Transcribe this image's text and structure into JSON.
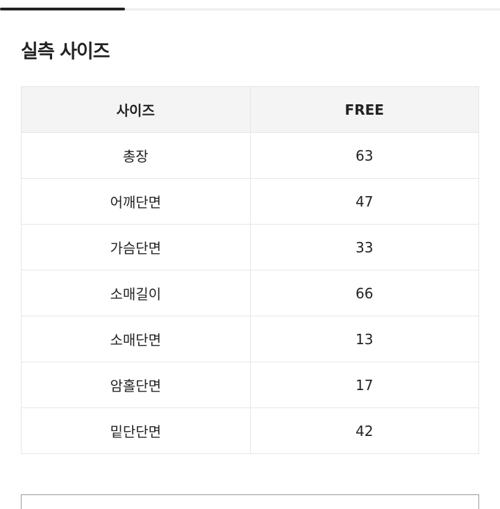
{
  "section_title": "실측 사이즈",
  "table": {
    "headers": [
      "사이즈",
      "FREE"
    ],
    "rows": [
      {
        "label": "총장",
        "value": "63"
      },
      {
        "label": "어깨단면",
        "value": "47"
      },
      {
        "label": "가슴단면",
        "value": "33"
      },
      {
        "label": "소매길이",
        "value": "66"
      },
      {
        "label": "소매단면",
        "value": "13"
      },
      {
        "label": "암홀단면",
        "value": "17"
      },
      {
        "label": "밑단단면",
        "value": "42"
      }
    ]
  }
}
